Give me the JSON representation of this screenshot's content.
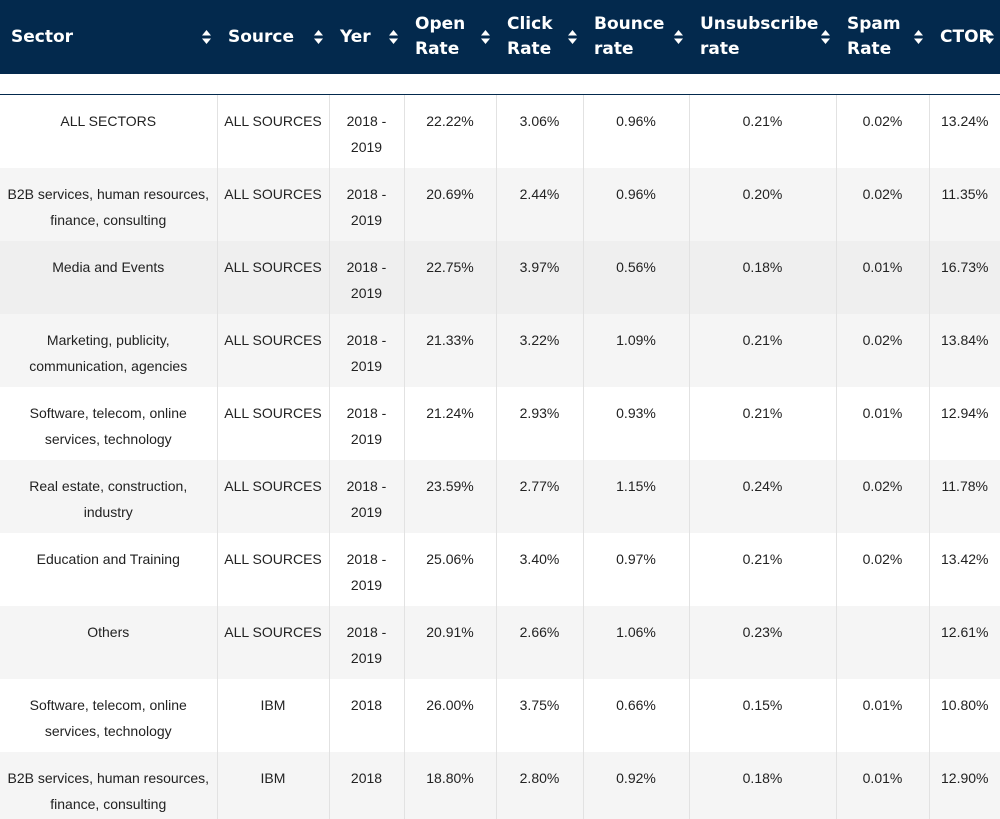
{
  "columns": [
    {
      "label": "Sector"
    },
    {
      "label": "Source"
    },
    {
      "label": "Yer"
    },
    {
      "label": "Open Rate"
    },
    {
      "label": "Click Rate"
    },
    {
      "label": "Bounce rate"
    },
    {
      "label": "Unsubscribe rate"
    },
    {
      "label": "Spam Rate"
    },
    {
      "label": "CTOR"
    }
  ],
  "rows": [
    {
      "sector": "ALL SECTORS",
      "source": "ALL SOURCES",
      "year": "2018 - 2019",
      "open": "22.22%",
      "click": "3.06%",
      "bounce": "0.96%",
      "unsub": "0.21%",
      "spam": "0.02%",
      "ctor": "13.24%"
    },
    {
      "sector": "B2B services, human resources, finance, consulting",
      "source": "ALL SOURCES",
      "year": "2018 - 2019",
      "open": "20.69%",
      "click": "2.44%",
      "bounce": "0.96%",
      "unsub": "0.20%",
      "spam": "0.02%",
      "ctor": "11.35%"
    },
    {
      "sector": "Media and Events",
      "source": "ALL SOURCES",
      "year": "2018 - 2019",
      "open": "22.75%",
      "click": "3.97%",
      "bounce": "0.56%",
      "unsub": "0.18%",
      "spam": "0.01%",
      "ctor": "16.73%"
    },
    {
      "sector": "Marketing, publicity, communication, agencies",
      "source": "ALL SOURCES",
      "year": "2018 - 2019",
      "open": "21.33%",
      "click": "3.22%",
      "bounce": "1.09%",
      "unsub": "0.21%",
      "spam": "0.02%",
      "ctor": "13.84%"
    },
    {
      "sector": "Software, telecom, online services, technology",
      "source": "ALL SOURCES",
      "year": "2018 - 2019",
      "open": "21.24%",
      "click": "2.93%",
      "bounce": "0.93%",
      "unsub": "0.21%",
      "spam": "0.01%",
      "ctor": "12.94%"
    },
    {
      "sector": "Real estate, construction, industry",
      "source": "ALL SOURCES",
      "year": "2018 - 2019",
      "open": "23.59%",
      "click": "2.77%",
      "bounce": "1.15%",
      "unsub": "0.24%",
      "spam": "0.02%",
      "ctor": "11.78%"
    },
    {
      "sector": "Education and Training",
      "source": "ALL SOURCES",
      "year": "2018 - 2019",
      "open": "25.06%",
      "click": "3.40%",
      "bounce": "0.97%",
      "unsub": "0.21%",
      "spam": "0.02%",
      "ctor": "13.42%"
    },
    {
      "sector": "Others",
      "source": "ALL SOURCES",
      "year": "2018 - 2019",
      "open": "20.91%",
      "click": "2.66%",
      "bounce": "1.06%",
      "unsub": "0.23%",
      "spam": "",
      "ctor": "12.61%"
    },
    {
      "sector": "Software, telecom, online services, technology",
      "source": "IBM",
      "year": "2018",
      "open": "26.00%",
      "click": "3.75%",
      "bounce": "0.66%",
      "unsub": "0.15%",
      "spam": "0.01%",
      "ctor": "10.80%"
    },
    {
      "sector": "B2B services, human resources, finance, consulting",
      "source": "IBM",
      "year": "2018",
      "open": "18.80%",
      "click": "2.80%",
      "bounce": "0.92%",
      "unsub": "0.18%",
      "spam": "0.01%",
      "ctor": "12.90%"
    }
  ],
  "icons": {
    "sort": "sort-up-down-icon"
  },
  "colors": {
    "header_bg": "#03294d",
    "header_text": "#ffffff",
    "row_alt": "#f5f5f5",
    "row_hover": "#efefef",
    "cell_text": "#222222"
  }
}
